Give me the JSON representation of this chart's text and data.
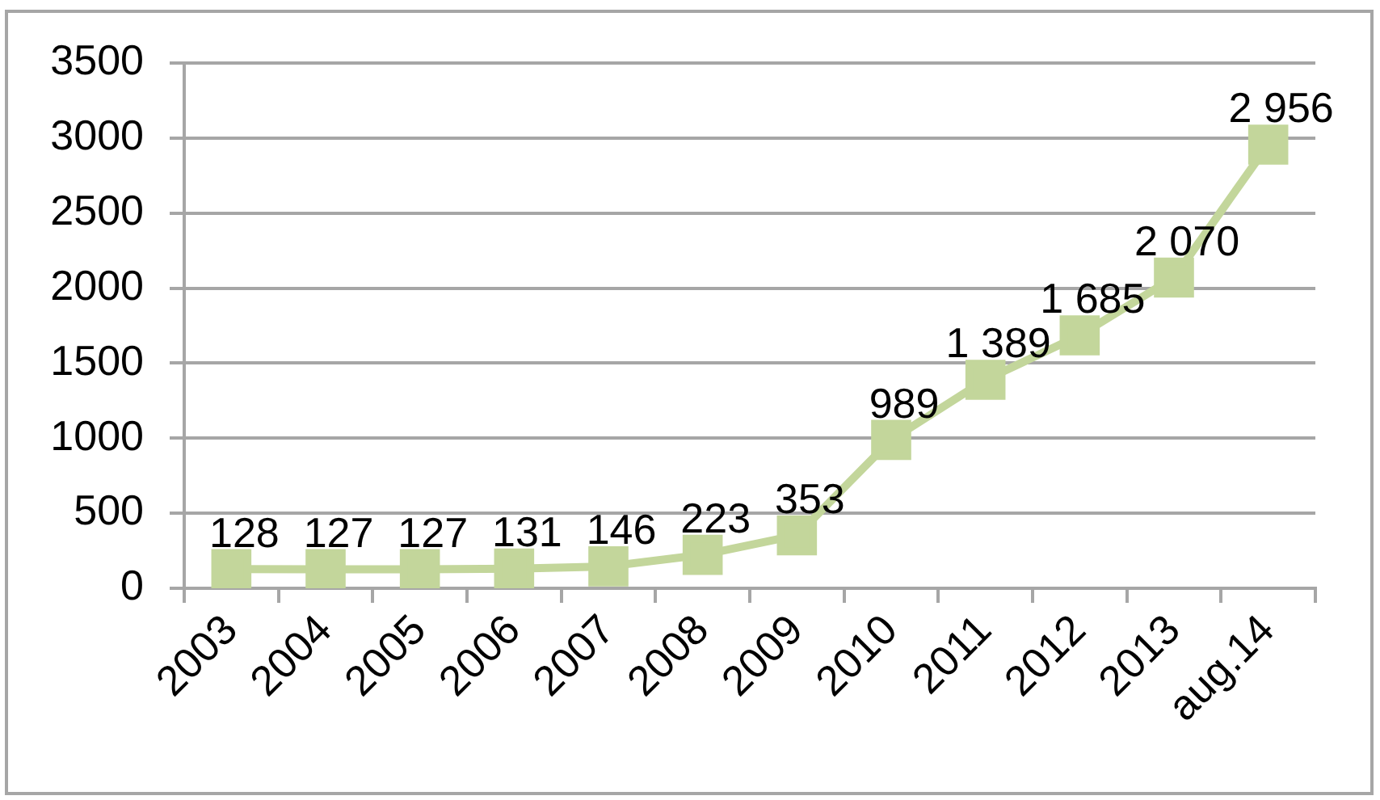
{
  "chart_data": {
    "type": "line",
    "categories": [
      "2003",
      "2004",
      "2005",
      "2006",
      "2007",
      "2008",
      "2009",
      "2010",
      "2011",
      "2012",
      "2013",
      "aug.14"
    ],
    "series": [
      {
        "color": "#c3d69b",
        "values": [
          128,
          127,
          127,
          131,
          146,
          223,
          353,
          989,
          1389,
          1685,
          2070,
          2956
        ],
        "value_labels": [
          "128",
          "127",
          "127",
          "131",
          "146",
          "223",
          "353",
          "989",
          "1 389",
          "1 685",
          "2 070",
          "2 956"
        ]
      }
    ],
    "ylim": [
      0,
      3500
    ],
    "yticks": [
      0,
      500,
      1000,
      1500,
      2000,
      2500,
      3000,
      3500
    ],
    "grid": "y",
    "legend": false,
    "marker": "square",
    "line_style": "solid"
  }
}
